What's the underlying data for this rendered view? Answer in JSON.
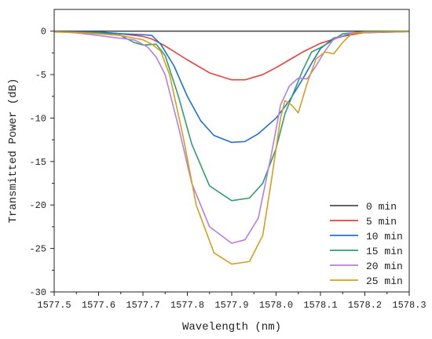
{
  "chart_data": {
    "type": "line",
    "xlabel": "Wavelength (nm)",
    "ylabel": "Transmitted Power (dB)",
    "xlim": [
      1577.5,
      1578.3
    ],
    "ylim": [
      -30,
      2.5
    ],
    "xticks": [
      1577.5,
      1577.6,
      1577.7,
      1577.8,
      1577.9,
      1578.0,
      1578.1,
      1578.2,
      1578.3
    ],
    "xtick_labels": [
      "1577.5",
      "1577.6",
      "1577.7",
      "1577.8",
      "1577.9",
      "1578.0",
      "1578.1",
      "1578.2",
      "1578.3"
    ],
    "yticks": [
      0,
      -5,
      -10,
      -15,
      -20,
      -25,
      -30
    ],
    "ytick_labels": [
      "0",
      "-5",
      "-10",
      "-15",
      "-20",
      "-25",
      "-30"
    ],
    "legend_position": "bottom-right",
    "series": [
      {
        "name": "0 min",
        "color": "#4d4d4d",
        "points": [
          [
            1577.5,
            0
          ],
          [
            1578.3,
            0
          ]
        ]
      },
      {
        "name": "5 min",
        "color": "#e8413c",
        "points": [
          [
            1577.5,
            -0.05
          ],
          [
            1577.6,
            -0.1
          ],
          [
            1577.65,
            -0.3
          ],
          [
            1577.7,
            -0.6
          ],
          [
            1577.72,
            -0.9
          ],
          [
            1577.75,
            -1.7
          ],
          [
            1577.8,
            -3.3
          ],
          [
            1577.85,
            -4.8
          ],
          [
            1577.9,
            -5.6
          ],
          [
            1577.93,
            -5.6
          ],
          [
            1577.97,
            -5.0
          ],
          [
            1578.0,
            -4.2
          ],
          [
            1578.03,
            -3.3
          ],
          [
            1578.06,
            -2.4
          ],
          [
            1578.1,
            -1.4
          ],
          [
            1578.15,
            -0.6
          ],
          [
            1578.2,
            -0.15
          ],
          [
            1578.3,
            -0.05
          ]
        ]
      },
      {
        "name": "10 min",
        "color": "#1f6fd6",
        "points": [
          [
            1577.5,
            -0.05
          ],
          [
            1577.6,
            -0.1
          ],
          [
            1577.65,
            -0.3
          ],
          [
            1577.7,
            -0.4
          ],
          [
            1577.72,
            -0.5
          ],
          [
            1577.74,
            -1.5
          ],
          [
            1577.77,
            -4.0
          ],
          [
            1577.8,
            -7.5
          ],
          [
            1577.83,
            -10.3
          ],
          [
            1577.86,
            -12.0
          ],
          [
            1577.9,
            -12.8
          ],
          [
            1577.93,
            -12.7
          ],
          [
            1577.96,
            -11.8
          ],
          [
            1578.0,
            -10.0
          ],
          [
            1578.03,
            -8.0
          ],
          [
            1578.06,
            -5.5
          ],
          [
            1578.08,
            -3.7
          ],
          [
            1578.1,
            -2.0
          ],
          [
            1578.13,
            -0.8
          ],
          [
            1578.18,
            -0.2
          ],
          [
            1578.3,
            -0.05
          ]
        ]
      },
      {
        "name": "15 min",
        "color": "#2e9e6e",
        "points": [
          [
            1577.5,
            -0.05
          ],
          [
            1577.6,
            -0.2
          ],
          [
            1577.65,
            -0.5
          ],
          [
            1577.68,
            -1.3
          ],
          [
            1577.7,
            -1.6
          ],
          [
            1577.73,
            -1.5
          ],
          [
            1577.75,
            -2.8
          ],
          [
            1577.78,
            -7.5
          ],
          [
            1577.81,
            -13.0
          ],
          [
            1577.85,
            -17.8
          ],
          [
            1577.9,
            -19.5
          ],
          [
            1577.94,
            -19.2
          ],
          [
            1577.97,
            -17.5
          ],
          [
            1578.0,
            -13.5
          ],
          [
            1578.02,
            -9.5
          ],
          [
            1578.04,
            -7.0
          ],
          [
            1578.06,
            -4.5
          ],
          [
            1578.08,
            -2.4
          ],
          [
            1578.1,
            -1.9
          ],
          [
            1578.12,
            -1.3
          ],
          [
            1578.15,
            -0.3
          ],
          [
            1578.2,
            -0.05
          ],
          [
            1578.3,
            0
          ]
        ]
      },
      {
        "name": "20 min",
        "color": "#b77ee0",
        "points": [
          [
            1577.5,
            -0.05
          ],
          [
            1577.55,
            -0.2
          ],
          [
            1577.6,
            -0.5
          ],
          [
            1577.63,
            -0.7
          ],
          [
            1577.68,
            -1.0
          ],
          [
            1577.71,
            -1.8
          ],
          [
            1577.73,
            -3.0
          ],
          [
            1577.75,
            -5.0
          ],
          [
            1577.78,
            -11.0
          ],
          [
            1577.81,
            -17.5
          ],
          [
            1577.85,
            -22.5
          ],
          [
            1577.9,
            -24.4
          ],
          [
            1577.93,
            -24.0
          ],
          [
            1577.96,
            -21.5
          ],
          [
            1577.99,
            -14.0
          ],
          [
            1578.01,
            -8.5
          ],
          [
            1578.03,
            -6.3
          ],
          [
            1578.05,
            -5.4
          ],
          [
            1578.07,
            -5.5
          ],
          [
            1578.09,
            -4.0
          ],
          [
            1578.11,
            -2.3
          ],
          [
            1578.13,
            -0.9
          ],
          [
            1578.17,
            -0.2
          ],
          [
            1578.3,
            -0.05
          ]
        ]
      },
      {
        "name": "25 min",
        "color": "#d5a019",
        "points": [
          [
            1577.5,
            -0.1
          ],
          [
            1577.55,
            -0.15
          ],
          [
            1577.6,
            -0.3
          ],
          [
            1577.65,
            -0.5
          ],
          [
            1577.7,
            -1.0
          ],
          [
            1577.72,
            -1.5
          ],
          [
            1577.74,
            -2.3
          ],
          [
            1577.76,
            -5.0
          ],
          [
            1577.79,
            -12.0
          ],
          [
            1577.82,
            -20.0
          ],
          [
            1577.86,
            -25.5
          ],
          [
            1577.9,
            -26.8
          ],
          [
            1577.94,
            -26.5
          ],
          [
            1577.97,
            -23.5
          ],
          [
            1577.99,
            -17.0
          ],
          [
            1578.01,
            -10.0
          ],
          [
            1578.02,
            -8.0
          ],
          [
            1578.035,
            -8.5
          ],
          [
            1578.05,
            -9.4
          ],
          [
            1578.07,
            -6.0
          ],
          [
            1578.09,
            -3.2
          ],
          [
            1578.11,
            -2.4
          ],
          [
            1578.13,
            -2.6
          ],
          [
            1578.15,
            -1.3
          ],
          [
            1578.17,
            -0.3
          ],
          [
            1578.2,
            -0.1
          ],
          [
            1578.3,
            -0.05
          ]
        ]
      }
    ]
  }
}
